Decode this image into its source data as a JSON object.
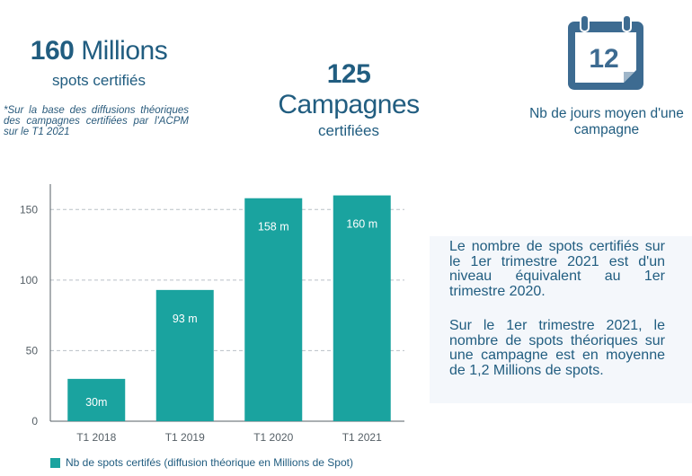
{
  "kpis": {
    "spots": {
      "number": "160",
      "unit": "Millions",
      "label": "spots certifiés"
    },
    "campaigns": {
      "number": "125",
      "unit": "Campagnes",
      "label": "certifiées"
    },
    "days": {
      "number": "12",
      "label_line1": "Nb de jours moyen d'une",
      "label_line2": "campagne"
    },
    "footnote": "*Sur la base des diffusions théoriques des campagnes certifiées par l'ACPM sur le T1 2021"
  },
  "text_panel": {
    "paragraph1": "Le nombre de spots certifiés sur le 1er trimestre 2021 est d'un niveau équivalent au 1er trimestre 2020.",
    "paragraph2": "Sur le 1er trimestre 2021, le nombre de spots théoriques sur une campagne est en moyenne de 1,2 Millions de spots."
  },
  "colors": {
    "accent": "#1aa39f",
    "text": "#215d80",
    "calendar": "#3d6b91",
    "panel": "#f4f7fb"
  },
  "chart_data": {
    "type": "bar",
    "categories": [
      "T1 2018",
      "T1 2019",
      "T1 2020",
      "T1 2021"
    ],
    "series": [
      {
        "name": "Nb de spots certifés (diffusion théorique en Millions de Spot)",
        "values": [
          30,
          93,
          158,
          160
        ]
      }
    ],
    "data_labels": [
      "30m",
      "93 m",
      "158 m",
      "160 m"
    ],
    "ylim": [
      0,
      168
    ],
    "yticks": [
      0,
      50,
      100,
      150
    ],
    "grid": true,
    "legend_position": "bottom"
  }
}
